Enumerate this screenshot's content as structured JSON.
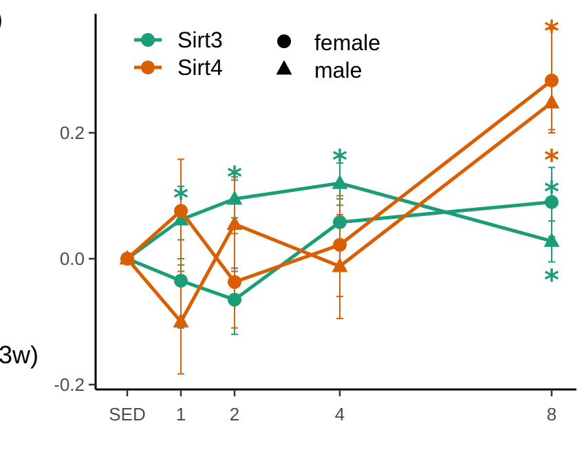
{
  "chart_data": {
    "type": "line",
    "title": "",
    "xlabel": "",
    "ylabel": "",
    "side_label_fragment": "3w)",
    "side_label_fragment_top": ")",
    "x_categories": [
      "SED",
      "1",
      "2",
      "4",
      "8"
    ],
    "x_values": [
      0,
      1,
      2,
      4,
      8
    ],
    "ylim": [
      -0.2,
      0.37
    ],
    "y_ticks": [
      -0.2,
      0.0,
      0.2
    ],
    "y_tick_labels": [
      "-0.2",
      "0.0",
      "0.2"
    ],
    "legend_colour": [
      {
        "name": "Sirt3",
        "color": "#1b9e77"
      },
      {
        "name": "Sirt4",
        "color": "#d95f02"
      }
    ],
    "legend_shape": [
      {
        "name": "female",
        "shape": "circle"
      },
      {
        "name": "male",
        "shape": "triangle"
      }
    ],
    "series": [
      {
        "name": "Sirt3 female",
        "gene": "Sirt3",
        "sex": "female",
        "color": "#1b9e77",
        "shape": "circle",
        "values": [
          0.0,
          -0.035,
          -0.065,
          0.058,
          0.09
        ],
        "err_low": [
          0.0,
          -0.11,
          -0.12,
          0.02,
          0.035
        ],
        "err_high": [
          0.0,
          0.03,
          -0.015,
          0.095,
          0.145
        ]
      },
      {
        "name": "Sirt3 male",
        "gene": "Sirt3",
        "sex": "male",
        "color": "#1b9e77",
        "shape": "triangle",
        "values": [
          0.0,
          0.062,
          0.095,
          0.12,
          0.028
        ],
        "err_low": [
          0.0,
          0.0,
          0.065,
          0.085,
          -0.005
        ],
        "err_high": [
          0.0,
          0.115,
          0.125,
          0.152,
          0.06
        ]
      },
      {
        "name": "Sirt4 female",
        "gene": "Sirt4",
        "sex": "female",
        "color": "#d95f02",
        "shape": "circle",
        "values": [
          0.0,
          0.076,
          -0.037,
          0.022,
          0.283
        ],
        "err_low": [
          0.0,
          -0.01,
          -0.11,
          -0.06,
          0.2
        ],
        "err_high": [
          0.0,
          0.158,
          0.04,
          0.1,
          0.365
        ]
      },
      {
        "name": "Sirt4 male",
        "gene": "Sirt4",
        "sex": "male",
        "color": "#d95f02",
        "shape": "triangle",
        "values": [
          0.0,
          -0.1,
          0.055,
          -0.012,
          0.248
        ],
        "err_low": [
          0.0,
          -0.183,
          -0.02,
          -0.095,
          0.205
        ],
        "err_high": [
          0.0,
          -0.02,
          0.13,
          0.07,
          0.29
        ]
      }
    ],
    "annotations": [
      {
        "text": "*",
        "x": 1,
        "y": 0.105,
        "color": "#1b9e77"
      },
      {
        "text": "*",
        "x": 2,
        "y": 0.138,
        "color": "#1b9e77"
      },
      {
        "text": "*",
        "x": 4,
        "y": 0.165,
        "color": "#1b9e77"
      },
      {
        "text": "*",
        "x": 8,
        "y": 0.115,
        "color": "#1b9e77"
      },
      {
        "text": "*",
        "x": 8,
        "y": -0.025,
        "color": "#1b9e77"
      },
      {
        "text": "*",
        "x": 8,
        "y": 0.165,
        "color": "#d95f02"
      },
      {
        "text": "*",
        "x": 8,
        "y": 0.37,
        "color": "#d95f02"
      }
    ]
  }
}
